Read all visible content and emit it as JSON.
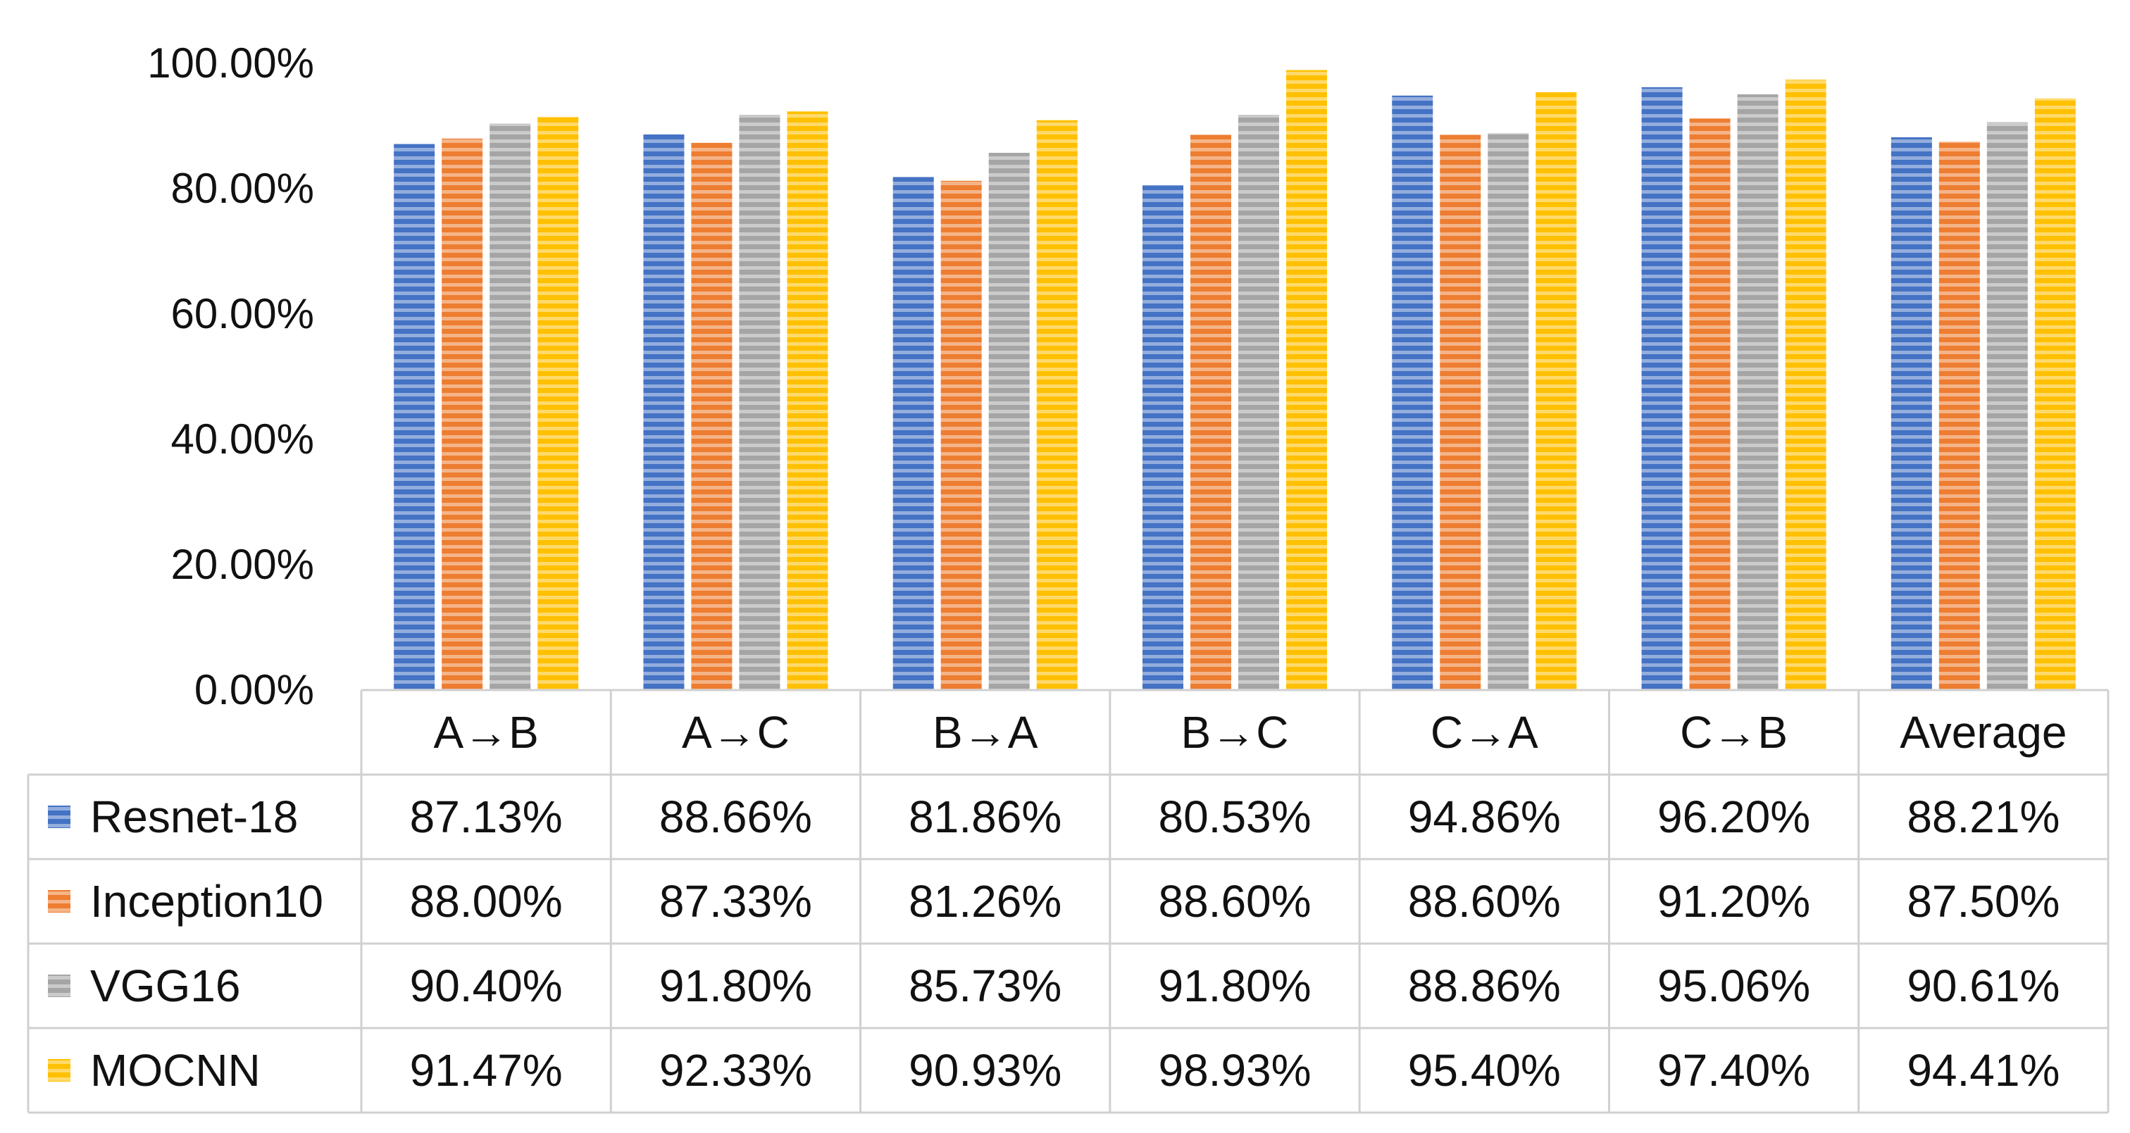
{
  "chart_data": {
    "type": "bar",
    "title": "",
    "xlabel": "",
    "ylabel": "",
    "ylim": [
      0,
      100
    ],
    "grid": false,
    "legend": "data-table-left",
    "y_ticks": [
      "0.00%",
      "20.00%",
      "40.00%",
      "60.00%",
      "80.00%",
      "100.00%"
    ],
    "categories": [
      "A→B",
      "A→C",
      "B→A",
      "B→C",
      "C→A",
      "C→B",
      "Average"
    ],
    "series": [
      {
        "name": "Resnet-18",
        "color": "#4472C4",
        "values": [
          87.13,
          88.66,
          81.86,
          80.53,
          94.86,
          96.2,
          88.21
        ],
        "labels": [
          "87.13%",
          "88.66%",
          "81.86%",
          "80.53%",
          "94.86%",
          "96.20%",
          "88.21%"
        ]
      },
      {
        "name": "Inception10",
        "color": "#ED7D31",
        "values": [
          88.0,
          87.33,
          81.26,
          88.6,
          88.6,
          91.2,
          87.5
        ],
        "labels": [
          "88.00%",
          "87.33%",
          "81.26%",
          "88.60%",
          "88.60%",
          "91.20%",
          "87.50%"
        ]
      },
      {
        "name": "VGG16",
        "color": "#A5A5A5",
        "values": [
          90.4,
          91.8,
          85.73,
          91.8,
          88.86,
          95.06,
          90.61
        ],
        "labels": [
          "90.40%",
          "91.80%",
          "85.73%",
          "91.80%",
          "88.86%",
          "95.06%",
          "90.61%"
        ]
      },
      {
        "name": "MOCNN",
        "color": "#FFC000",
        "values": [
          91.47,
          92.33,
          90.93,
          98.93,
          95.4,
          97.4,
          94.41
        ],
        "labels": [
          "91.47%",
          "92.33%",
          "90.93%",
          "98.93%",
          "95.40%",
          "97.40%",
          "94.41%"
        ]
      }
    ]
  }
}
